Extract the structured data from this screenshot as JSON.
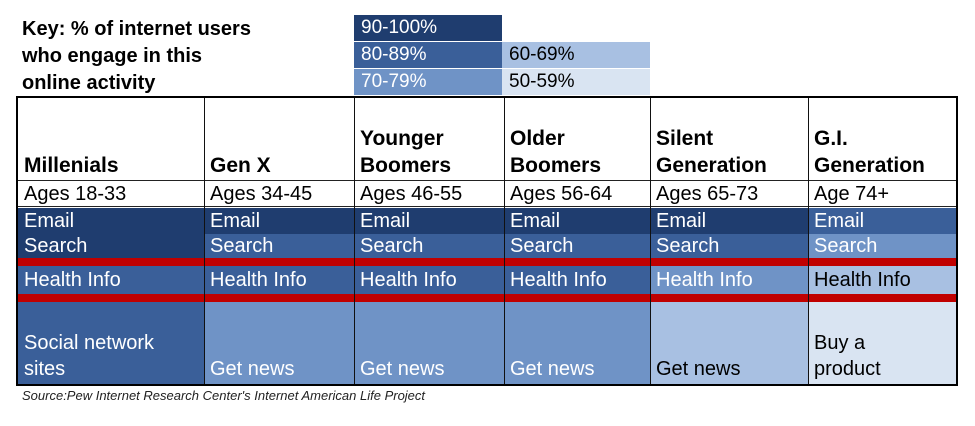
{
  "key": {
    "title_lines": [
      "Key: % of internet users",
      "who engage in this",
      "online activity"
    ],
    "ranges": [
      {
        "label": "90-100%",
        "color": "#1f3d6f",
        "text_color": "#ffffff"
      },
      {
        "label": "80-89%",
        "color": "#3a5f99",
        "text_color": "#ffffff"
      },
      {
        "label": "70-79%",
        "color": "#6f93c6",
        "text_color": "#ffffff"
      },
      {
        "label": "60-69%",
        "color": "#a8c0e2",
        "text_color": "#000000"
      },
      {
        "label": "50-59%",
        "color": "#d9e4f2",
        "text_color": "#000000"
      }
    ]
  },
  "chart_data": {
    "type": "table",
    "columns": [
      {
        "generation": "Millenials",
        "ages": "Ages 18-33",
        "email": {
          "label": "Email",
          "range": "90-100%"
        },
        "search": {
          "label": "Search",
          "range": "90-100%"
        },
        "health": {
          "label": "Health Info",
          "range": "80-89%"
        },
        "activity": {
          "label": "Social network sites",
          "range": "80-89%"
        }
      },
      {
        "generation": "Gen X",
        "ages": "Ages 34-45",
        "email": {
          "label": "Email",
          "range": "90-100%"
        },
        "search": {
          "label": "Search",
          "range": "80-89%"
        },
        "health": {
          "label": "Health Info",
          "range": "80-89%"
        },
        "activity": {
          "label": "Get news",
          "range": "70-79%"
        }
      },
      {
        "generation": "Younger Boomers",
        "ages": "Ages 46-55",
        "email": {
          "label": "Email",
          "range": "90-100%"
        },
        "search": {
          "label": "Search",
          "range": "80-89%"
        },
        "health": {
          "label": "Health Info",
          "range": "80-89%"
        },
        "activity": {
          "label": "Get news",
          "range": "70-79%"
        }
      },
      {
        "generation": "Older Boomers",
        "ages": "Ages 56-64",
        "email": {
          "label": "Email",
          "range": "90-100%"
        },
        "search": {
          "label": "Search",
          "range": "80-89%"
        },
        "health": {
          "label": "Health Info",
          "range": "80-89%"
        },
        "activity": {
          "label": "Get news",
          "range": "70-79%"
        }
      },
      {
        "generation": "Silent Generation",
        "ages": "Ages 65-73",
        "email": {
          "label": "Email",
          "range": "90-100%"
        },
        "search": {
          "label": "Search",
          "range": "80-89%"
        },
        "health": {
          "label": "Health Info",
          "range": "70-79%"
        },
        "activity": {
          "label": "Get news",
          "range": "60-69%"
        }
      },
      {
        "generation": "G.I. Generation",
        "ages": "Age 74+",
        "email": {
          "label": "Email",
          "range": "80-89%"
        },
        "search": {
          "label": "Search",
          "range": "70-79%"
        },
        "health": {
          "label": "Health Info",
          "range": "60-69%"
        },
        "activity": {
          "label": "Buy a product",
          "range": "50-59%"
        }
      }
    ],
    "separator_color": "#c00000"
  },
  "source": "Source:Pew Internet Research Center's Internet American Life Project"
}
